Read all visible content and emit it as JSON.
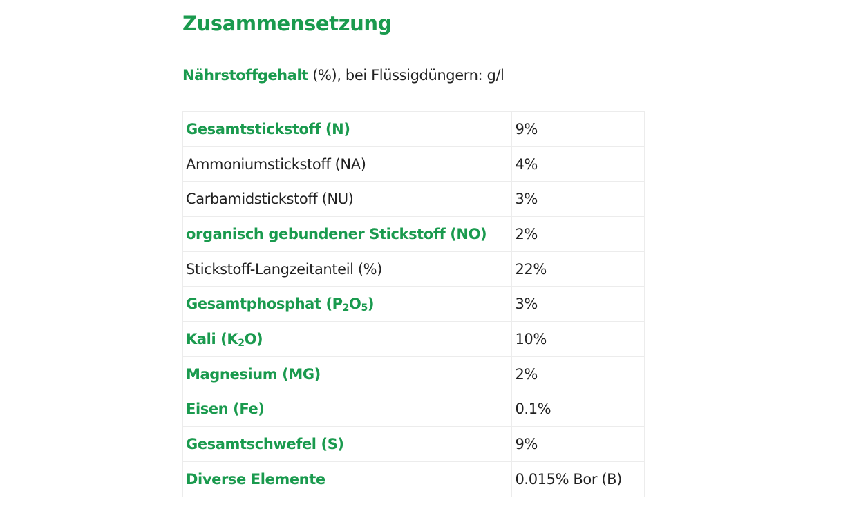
{
  "section": {
    "title": "Zusammensetzung",
    "subtitle_bold": "Nährstoffgehalt",
    "subtitle_rest": " (%), bei Flüssigdüngern: g/l"
  },
  "colors": {
    "accent_green": "#1a9a4e",
    "text": "#222222",
    "rule": "#1f8a4c",
    "table_border": "#ececec"
  },
  "table": {
    "rows": [
      {
        "label": "Gesamtstickstoff (N)",
        "value": "9%",
        "highlight": true
      },
      {
        "label": "Ammoniumstickstoff (NA)",
        "value": "4%",
        "highlight": false
      },
      {
        "label": "Carbamidstickstoff (NU)",
        "value": "3%",
        "highlight": false
      },
      {
        "label": "organisch gebundener Stickstoff (NO)",
        "value": "2%",
        "highlight": true
      },
      {
        "label": "Stickstoff-Langzeitanteil (%)",
        "value": "22%",
        "highlight": false
      },
      {
        "label_pre": "Gesamtphosphat (P",
        "sub1": "2",
        "label_mid": "O",
        "sub2": "5",
        "label_post": ")",
        "value": "3%",
        "highlight": true
      },
      {
        "label_pre": "Kali (K",
        "sub1": "2",
        "label_post": "O)",
        "value": "10%",
        "highlight": true
      },
      {
        "label": "Magnesium (MG)",
        "value": "2%",
        "highlight": true
      },
      {
        "label": "Eisen (Fe)",
        "value": "0.1%",
        "highlight": true
      },
      {
        "label": "Gesamtschwefel (S)",
        "value": "9%",
        "highlight": true
      },
      {
        "label": "Diverse Elemente",
        "value": "0.015% Bor (B)",
        "highlight": true
      }
    ]
  }
}
